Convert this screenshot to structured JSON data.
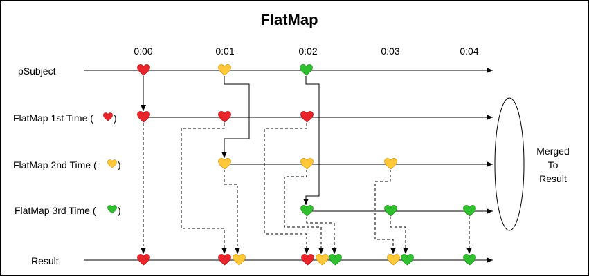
{
  "title": "FlatMap",
  "time_labels": [
    "0:00",
    "0:01",
    "0:02",
    "0:03",
    "0:04"
  ],
  "rows": {
    "psubject": "pSubject",
    "flatmap1": {
      "text": "FlatMap 1st Time (",
      "close": ")",
      "heart": "red"
    },
    "flatmap2": {
      "text": "FlatMap 2nd Time (",
      "close": ")",
      "heart": "yellow"
    },
    "flatmap3": {
      "text": "FlatMap 3rd Time (",
      "close": ")",
      "heart": "green"
    },
    "result": "Result"
  },
  "merged_label": [
    "Merged",
    "To",
    "Result"
  ],
  "colors": {
    "red": "#e8252b",
    "yellow": "#ffc83a",
    "green": "#2fbf2f"
  }
}
